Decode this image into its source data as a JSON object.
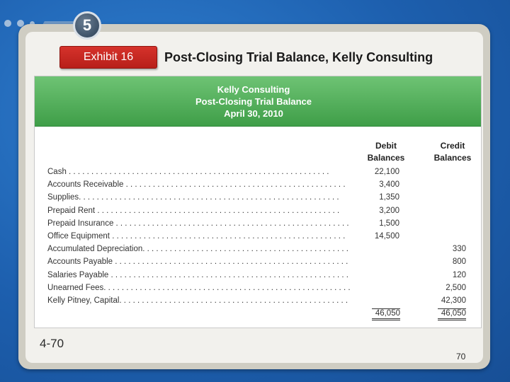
{
  "chapter_number": "5",
  "exhibit": {
    "label": "Exhibit 16"
  },
  "slide_title": "Post-Closing Trial Balance, Kelly Consulting",
  "table": {
    "header": {
      "company": "Kelly Consulting",
      "statement": "Post-Closing Trial Balance",
      "date": "April 30, 2010"
    },
    "columns": {
      "debit": [
        "Debit",
        "Balances"
      ],
      "credit": [
        "Credit",
        "Balances"
      ]
    },
    "rows": [
      {
        "account": "Cash . . . . . . . . . . . . . . . . . . . . . . . . . . . . . . . . . . . . . . . . . . . . . . . . . . . . . . . . . .",
        "debit": "22,100",
        "credit": ""
      },
      {
        "account": "Accounts Receivable . . . . . . . . . . . . . . . . . . . . . . . . . . . . . . . . . . . . . . . . . . . . . . . . .",
        "debit": "3,400",
        "credit": ""
      },
      {
        "account": "Supplies. . . . . . . . . . . . . . . . . . . . . . . . . . . . . . . . . . . . . . . . . . . . . . . . . . . . . . . . . .",
        "debit": "1,350",
        "credit": ""
      },
      {
        "account": "Prepaid Rent  . . . . . . . . . . . . . . . . . . . . . . . . . . . . . . . . . . . . . . . . . . . . . . . . . . . . . .",
        "debit": "3,200",
        "credit": ""
      },
      {
        "account": "Prepaid Insurance . . . . . . . . . . . . . . . . . . . . . . . . . . . . . . . . . . . . . . . . . . . . . . . . . . . .",
        "debit": "1,500",
        "credit": ""
      },
      {
        "account": "Office Equipment . . . . . . . . . . . . . . . . . . . . . . . . . . . . . . . . . . . . . . . . . . . . . . . . . . . .",
        "debit": "14,500",
        "credit": ""
      },
      {
        "account": "Accumulated Depreciation. . . . . . . . . . . . . . . . . . . . . . . . . . . . . . . . . . . . . . . . . . . . . .",
        "debit": "",
        "credit": "330"
      },
      {
        "account": "Accounts Payable . . . . . . . . . . . . . . . . . . . . . . . . . . . . . . . . . . . . . . . . . . . . . . . . . . . .",
        "debit": "",
        "credit": "800"
      },
      {
        "account": "Salaries Payable . . . . . . . . . . . . . . . . . . . . . . . . . . . . . . . . . . . . . . . . . . . . . . . . . . . . .",
        "debit": "",
        "credit": "120"
      },
      {
        "account": "Unearned Fees. . . . . . . . . . . . . . . . . . . . . . . . . . . . . . . . . . . . . . . . . . . . . . . . . . . . . . .",
        "debit": "",
        "credit": "2,500"
      },
      {
        "account": "Kelly Pitney, Capital. . . . . . . . . . . . . . . . . . . . . . . . . . . . . . . . . . . . . . . . . . . . . . . . . . .",
        "debit": "",
        "credit": "42,300"
      }
    ],
    "totals": {
      "debit": "46,050",
      "credit": "46,050"
    }
  },
  "slide_label": "4-70",
  "page_number": "70"
}
